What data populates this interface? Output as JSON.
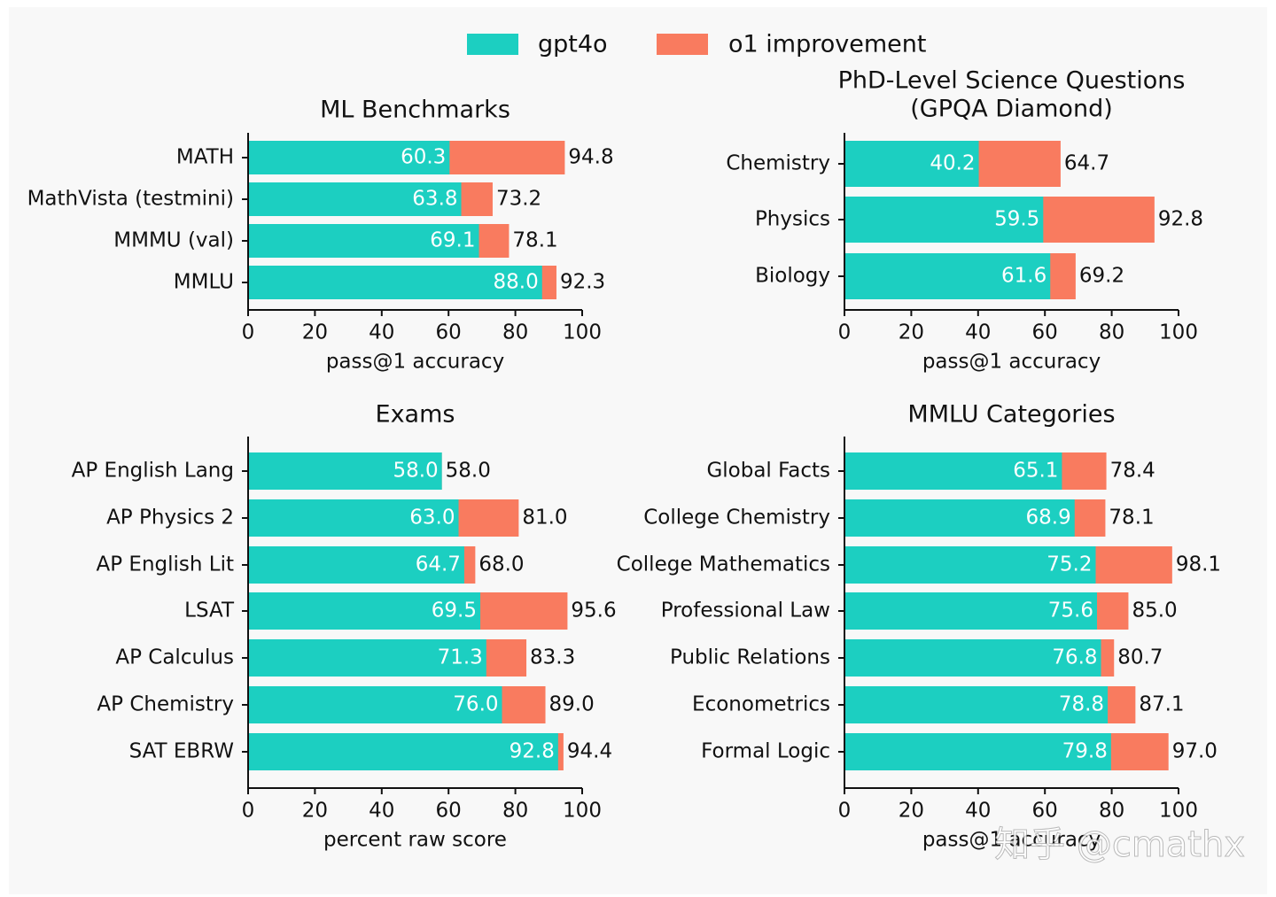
{
  "legend": {
    "series": [
      {
        "name": "gpt4o",
        "color": "#1ccfc1"
      },
      {
        "name": "o1 improvement",
        "color": "#f97b5f"
      }
    ]
  },
  "watermark": "知乎 @cmathx",
  "chart_data": [
    {
      "type": "bar",
      "orientation": "horizontal",
      "title": [
        "ML Benchmarks"
      ],
      "categories": [
        "MATH",
        "MathVista (testmini)",
        "MMMU (val)",
        "MMLU"
      ],
      "series": [
        {
          "values": [
            60.3,
            63.8,
            69.1,
            88.0
          ],
          "value_labels": [
            "60.3",
            "63.8",
            "69.1",
            "88.0"
          ]
        },
        {
          "values": [
            94.8,
            73.2,
            78.1,
            92.3
          ],
          "value_labels": [
            "94.8",
            "73.2",
            "78.1",
            "92.3"
          ]
        }
      ],
      "xlim": [
        0,
        100
      ],
      "xticks": [
        0,
        20,
        40,
        60,
        80,
        100
      ],
      "xlabel": "pass@1 accuracy"
    },
    {
      "type": "bar",
      "orientation": "horizontal",
      "title": [
        "PhD-Level Science Questions",
        "(GPQA Diamond)"
      ],
      "categories": [
        "Chemistry",
        "Physics",
        "Biology"
      ],
      "series": [
        {
          "values": [
            40.2,
            59.5,
            61.6
          ],
          "value_labels": [
            "40.2",
            "59.5",
            "61.6"
          ]
        },
        {
          "values": [
            64.7,
            92.8,
            69.2
          ],
          "value_labels": [
            "64.7",
            "92.8",
            "69.2"
          ]
        }
      ],
      "xlim": [
        0,
        100
      ],
      "xticks": [
        0,
        20,
        40,
        60,
        80,
        100
      ],
      "xlabel": "pass@1 accuracy"
    },
    {
      "type": "bar",
      "orientation": "horizontal",
      "title": [
        "Exams"
      ],
      "categories": [
        "AP English Lang",
        "AP Physics 2",
        "AP English Lit",
        "LSAT",
        "AP Calculus",
        "AP Chemistry",
        "SAT EBRW"
      ],
      "series": [
        {
          "values": [
            58.0,
            63.0,
            64.7,
            69.5,
            71.3,
            76.0,
            92.8
          ],
          "value_labels": [
            "58.0",
            "63.0",
            "64.7",
            "69.5",
            "71.3",
            "76.0",
            "92.8"
          ]
        },
        {
          "values": [
            58.0,
            81.0,
            68.0,
            95.6,
            83.3,
            89.0,
            94.4
          ],
          "value_labels": [
            "58.0",
            "81.0",
            "68.0",
            "95.6",
            "83.3",
            "89.0",
            "94.4"
          ]
        }
      ],
      "xlim": [
        0,
        100
      ],
      "xticks": [
        0,
        20,
        40,
        60,
        80,
        100
      ],
      "xlabel": "percent raw score"
    },
    {
      "type": "bar",
      "orientation": "horizontal",
      "title": [
        "MMLU Categories"
      ],
      "categories": [
        "Global Facts",
        "College Chemistry",
        "College Mathematics",
        "Professional Law",
        "Public Relations",
        "Econometrics",
        "Formal Logic"
      ],
      "series": [
        {
          "values": [
            65.1,
            68.9,
            75.2,
            75.6,
            76.8,
            78.8,
            79.8
          ],
          "value_labels": [
            "65.1",
            "68.9",
            "75.2",
            "75.6",
            "76.8",
            "78.8",
            "79.8"
          ]
        },
        {
          "values": [
            78.4,
            78.1,
            98.1,
            85.0,
            80.7,
            87.1,
            97.0
          ],
          "value_labels": [
            "78.4",
            "78.1",
            "98.1",
            "85.0",
            "80.7",
            "87.1",
            "97.0"
          ]
        }
      ],
      "xlim": [
        0,
        100
      ],
      "xticks": [
        0,
        20,
        40,
        60,
        80,
        100
      ],
      "xlabel": "pass@1 accuracy"
    }
  ]
}
